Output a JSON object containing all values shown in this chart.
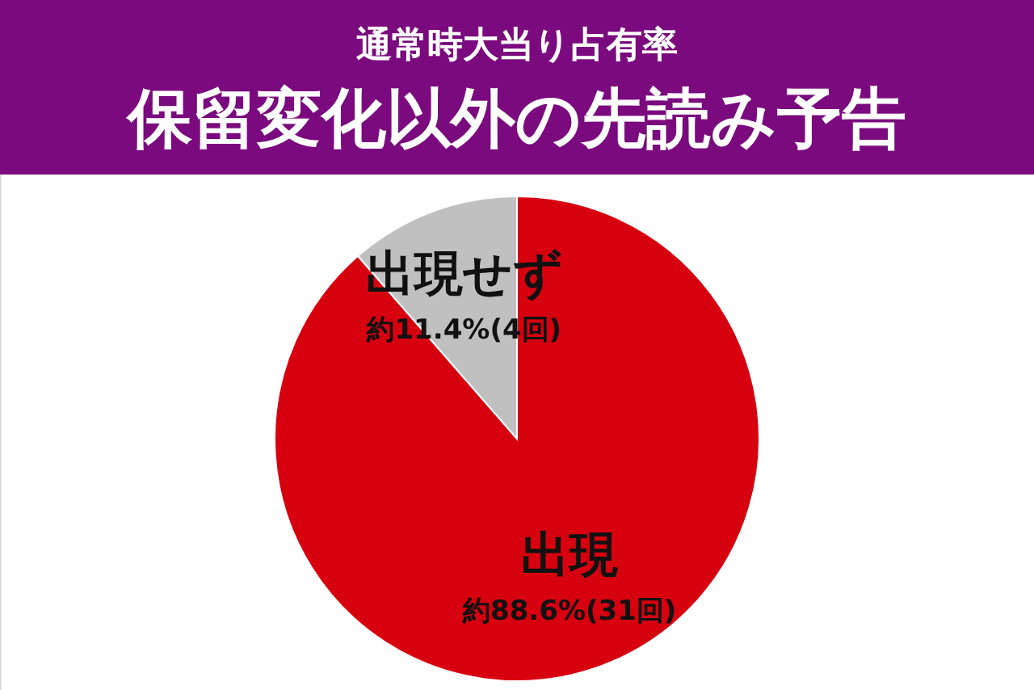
{
  "chart_data": {
    "type": "pie",
    "title": "通常時大当り占有率",
    "subtitle": "保留変化以外の先読み予告",
    "categories": [
      "出現",
      "出現せず"
    ],
    "values": [
      88.6,
      11.4
    ],
    "colors": [
      "#d7000f",
      "#c0c0c0"
    ],
    "value_labels": [
      "約88.6%(31回)",
      "約11.4%(4回)"
    ]
  }
}
